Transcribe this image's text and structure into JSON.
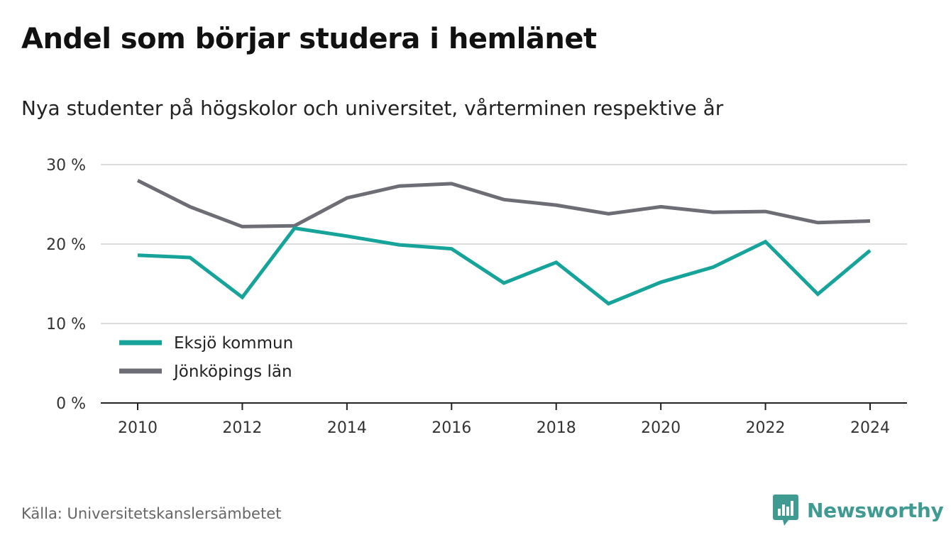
{
  "title": "Andel som börjar studera i hemlänet",
  "subtitle": "Nya studenter på högskolor och universitet, vårterminen respektive år",
  "source": "Källa: Universitetskanslersämbetet",
  "brand": {
    "name": "Newsworthy",
    "icon": "newsworthy-logo-icon",
    "color": "#3f9a92"
  },
  "colors": {
    "grid": "#dcdcdc",
    "axis": "#222222",
    "tick_label": "#333333"
  },
  "chart_data": {
    "type": "line",
    "x": [
      2010,
      2011,
      2012,
      2013,
      2014,
      2015,
      2016,
      2017,
      2018,
      2019,
      2020,
      2021,
      2022,
      2023,
      2024
    ],
    "series": [
      {
        "name": "Eksjö kommun",
        "color": "#16a39a",
        "values": [
          18.6,
          18.3,
          13.3,
          22.0,
          21.0,
          19.9,
          19.4,
          15.1,
          17.7,
          12.5,
          15.2,
          17.1,
          20.3,
          13.7,
          19.2
        ]
      },
      {
        "name": "Jönköpings län",
        "color": "#6d6d75",
        "values": [
          28.0,
          24.7,
          22.2,
          22.3,
          25.8,
          27.3,
          27.6,
          25.6,
          24.9,
          23.8,
          24.7,
          24.0,
          24.1,
          22.7,
          22.9
        ]
      }
    ],
    "xticks": [
      "2010",
      "2012",
      "2014",
      "2016",
      "2018",
      "2020",
      "2022",
      "2024"
    ],
    "yticks": [
      "0 %",
      "10 %",
      "20 %",
      "30 %"
    ],
    "ylim": [
      0,
      30
    ],
    "grid": true,
    "legend": "bottom-left"
  }
}
